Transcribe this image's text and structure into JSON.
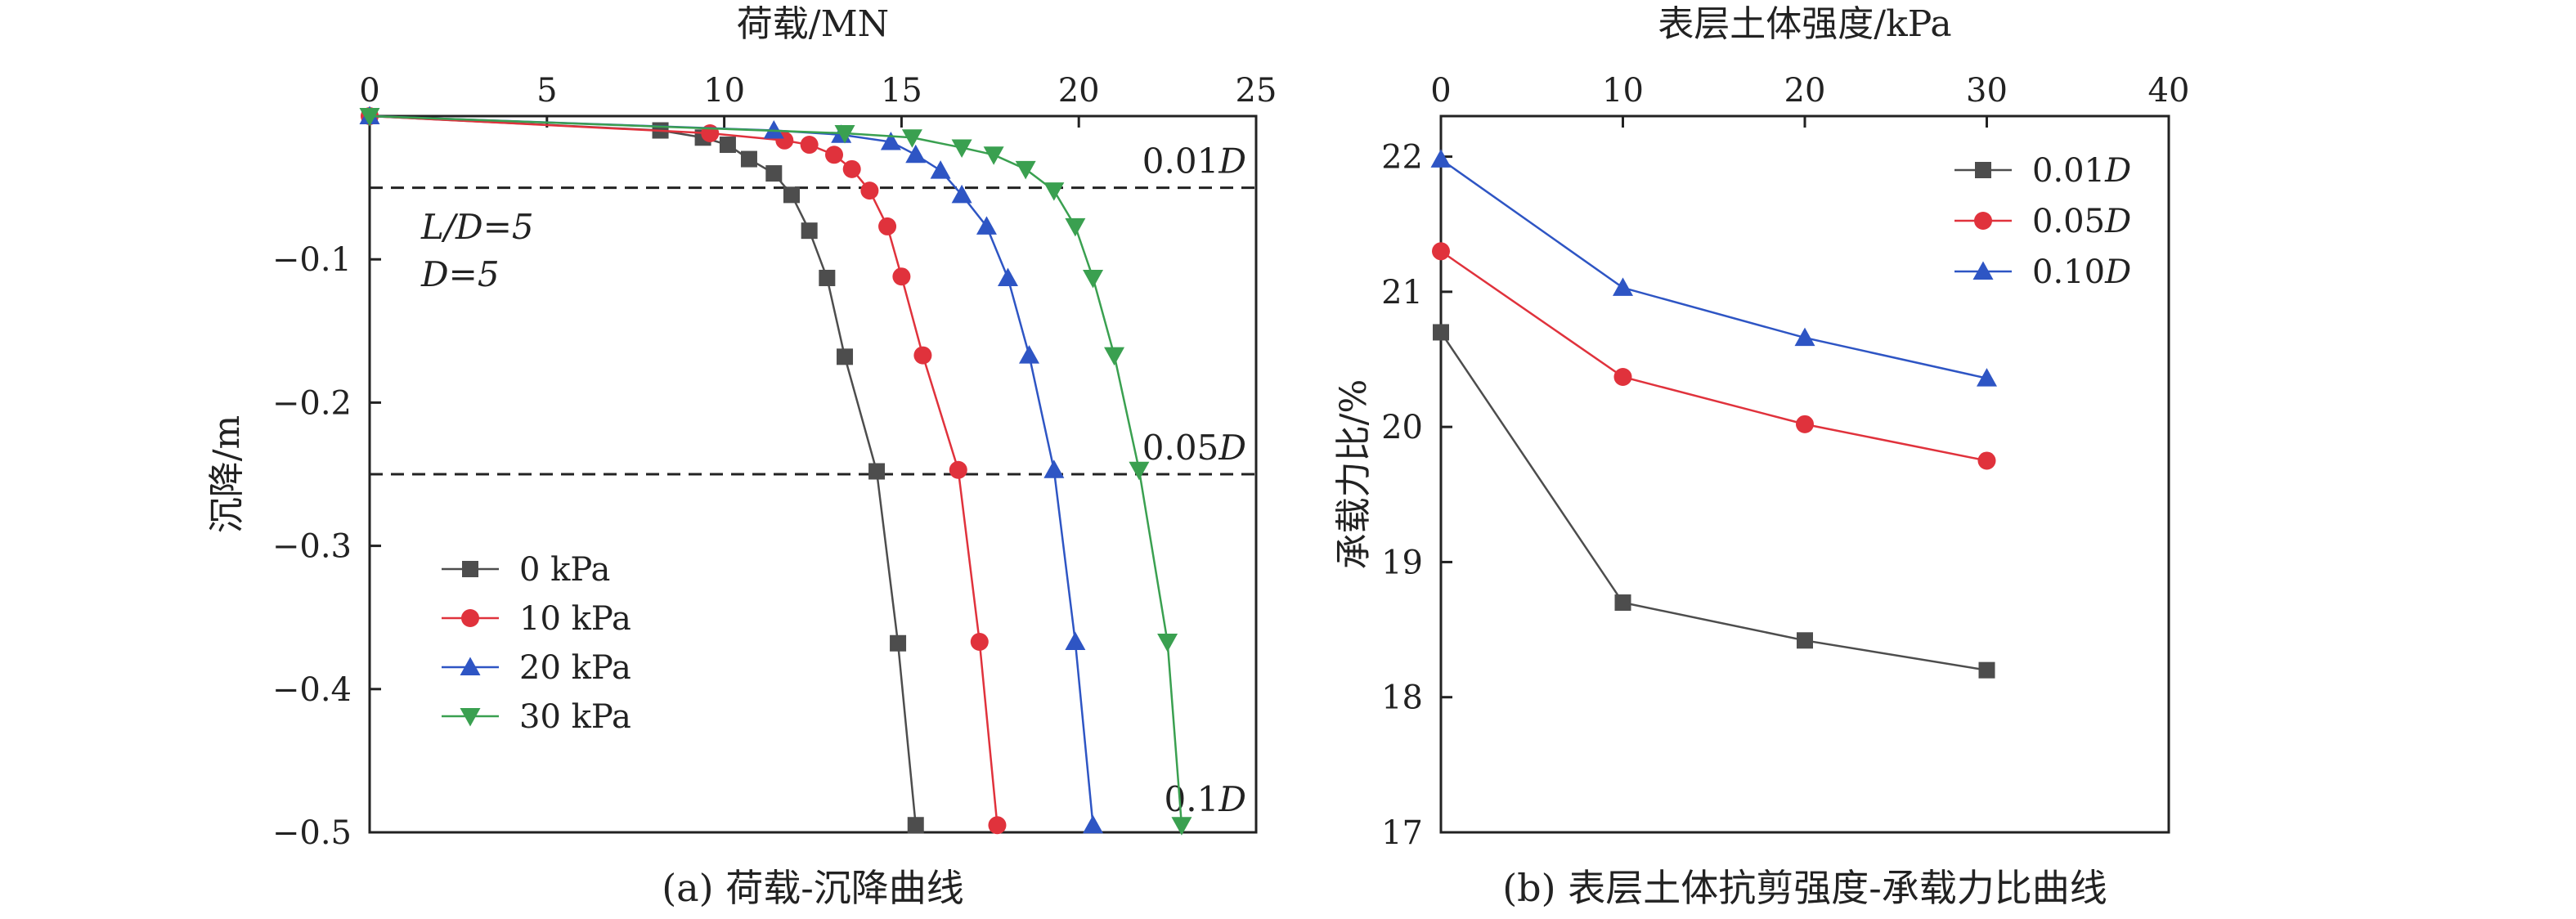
{
  "chart_data": [
    {
      "type": "line",
      "caption": "(a) 荷载-沉降曲线",
      "xlabel": "荷载/MN",
      "ylabel": "沉降/m",
      "xlim": [
        0,
        25
      ],
      "ylim": [
        -0.5,
        0
      ],
      "x_ticks": [
        "0",
        "5",
        "10",
        "15",
        "20",
        "25"
      ],
      "y_ticks": [
        "−0.1",
        "−0.2",
        "−0.3",
        "−0.4",
        "−0.5"
      ],
      "x_axis_position": "top",
      "grid": false,
      "legend_position": "bottom-left",
      "annotations": [
        {
          "text": "L/D=5"
        },
        {
          "text": "D=5"
        }
      ],
      "reference_lines": [
        {
          "y": -0.05,
          "label": "0.01D"
        },
        {
          "y": -0.25,
          "label": "0.05D"
        },
        {
          "y": -0.5,
          "label": "0.1D"
        }
      ],
      "series": [
        {
          "name": "0 kPa",
          "color": "#4d4d4d",
          "marker": "square",
          "x": [
            0,
            8.2,
            9.4,
            10.1,
            10.7,
            11.4,
            11.9,
            12.4,
            12.9,
            13.4,
            14.3,
            14.9,
            15.4
          ],
          "y": [
            0,
            -0.01,
            -0.015,
            -0.02,
            -0.03,
            -0.04,
            -0.055,
            -0.08,
            -0.113,
            -0.168,
            -0.248,
            -0.368,
            -0.495
          ]
        },
        {
          "name": "10 kPa",
          "color": "#e0323c",
          "marker": "circle",
          "x": [
            0,
            9.6,
            11.7,
            12.4,
            13.1,
            13.6,
            14.1,
            14.6,
            15.0,
            15.6,
            16.6,
            17.2,
            17.7
          ],
          "y": [
            0,
            -0.012,
            -0.017,
            -0.02,
            -0.027,
            -0.037,
            -0.052,
            -0.077,
            -0.112,
            -0.167,
            -0.247,
            -0.367,
            -0.495
          ]
        },
        {
          "name": "20 kPa",
          "color": "#2e55c4",
          "marker": "triangle-up",
          "x": [
            0,
            11.4,
            13.3,
            14.7,
            15.4,
            16.1,
            16.7,
            17.4,
            18.0,
            18.6,
            19.3,
            19.9,
            20.4
          ],
          "y": [
            0,
            -0.01,
            -0.013,
            -0.018,
            -0.027,
            -0.038,
            -0.055,
            -0.077,
            -0.113,
            -0.167,
            -0.247,
            -0.367,
            -0.495
          ]
        },
        {
          "name": "30 kPa",
          "color": "#3aa050",
          "marker": "triangle-down",
          "x": [
            0,
            13.4,
            15.3,
            16.7,
            17.6,
            18.5,
            19.3,
            19.9,
            20.4,
            21.0,
            21.7,
            22.5,
            22.9
          ],
          "y": [
            0,
            -0.012,
            -0.015,
            -0.022,
            -0.027,
            -0.037,
            -0.052,
            -0.077,
            -0.113,
            -0.167,
            -0.247,
            -0.367,
            -0.495
          ]
        }
      ]
    },
    {
      "type": "line",
      "caption": "(b) 表层土体抗剪强度-承载力比曲线",
      "xlabel": "表层土体强度/kPa",
      "ylabel": "承载力比/%",
      "xlim": [
        0,
        40
      ],
      "ylim": [
        17,
        22.3
      ],
      "x_ticks": [
        "0",
        "10",
        "20",
        "30",
        "40"
      ],
      "y_ticks": [
        "17",
        "18",
        "19",
        "20",
        "21",
        "22"
      ],
      "x_axis_position": "top",
      "grid": false,
      "legend_position": "top-right",
      "series": [
        {
          "name": "0.01D",
          "color": "#4d4d4d",
          "marker": "square",
          "x": [
            0,
            10,
            20,
            30
          ],
          "y": [
            20.7,
            18.7,
            18.42,
            18.2
          ]
        },
        {
          "name": "0.05D",
          "color": "#e0323c",
          "marker": "circle",
          "x": [
            0,
            10,
            20,
            30
          ],
          "y": [
            21.3,
            20.37,
            20.02,
            19.75
          ]
        },
        {
          "name": "0.10D",
          "color": "#2e55c4",
          "marker": "triangle-up",
          "x": [
            0,
            10,
            20,
            30
          ],
          "y": [
            21.98,
            21.03,
            20.66,
            20.36
          ]
        }
      ]
    }
  ]
}
